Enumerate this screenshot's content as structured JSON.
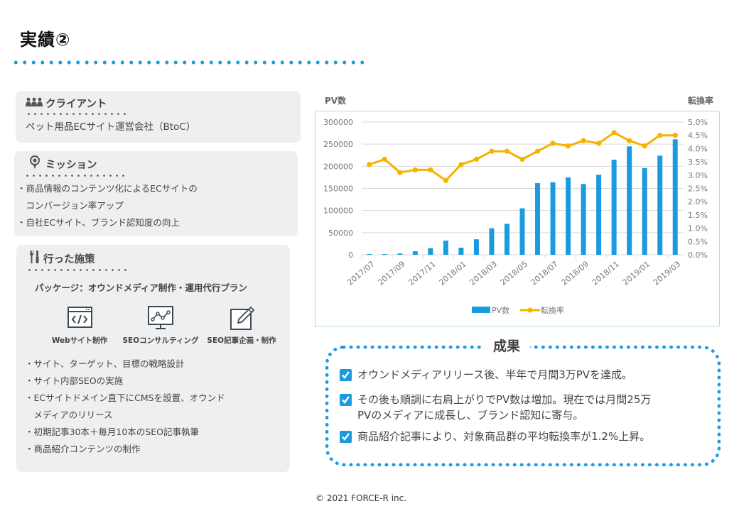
{
  "page": {
    "title": "実績②"
  },
  "client": {
    "heading": "クライアント",
    "icon": "group-icon",
    "text": "ペット用品ECサイト運営会社（BtoC）"
  },
  "mission": {
    "heading": "ミッション",
    "icon": "target-pin-icon",
    "items": [
      "・商品情報のコンテンツ化によるECサイトの",
      "　コンバージョン率アップ",
      "・自社ECサイト、ブランド認知度の向上"
    ]
  },
  "measures": {
    "heading": "行った施策",
    "icon": "tools-icon",
    "package": "パッケージ：オウンドメディア制作・運用代行プラン",
    "services": [
      {
        "label": "Webサイト制作",
        "icon": "code-window-icon"
      },
      {
        "label": "SEOコンサルティング",
        "icon": "analytics-monitor-icon"
      },
      {
        "label": "SEO記事企画・制作",
        "icon": "edit-pen-icon"
      }
    ],
    "items": [
      "・サイト、ターゲット、目標の戦略設計",
      "・サイト内部SEOの実施",
      "・ECサイトドメイン直下にCMSを設置、オウンド",
      "　メディアのリリース",
      "・初期記事30本＋毎月10本のSEO記事執筆",
      "・商品紹介コンテンツの制作"
    ]
  },
  "chart_data": {
    "type": "bar+line",
    "title": "",
    "ylabel": "PV数",
    "y2label": "転換率",
    "ylim": [
      0,
      300000
    ],
    "y2lim": [
      0,
      5.0
    ],
    "yticks": [
      "300000",
      "250000",
      "200000",
      "150000",
      "100000",
      "50000",
      "0"
    ],
    "y2ticks": [
      "5.0%",
      "4.5%",
      "4.0%",
      "3.5%",
      "3.0%",
      "2.5%",
      "2.0%",
      "1.5%",
      "1.0%",
      "0.5%",
      "0.0%"
    ],
    "xtick_labels": [
      "2017/07",
      "2017/09",
      "2017/11",
      "2018/01",
      "2018/03",
      "2018/05",
      "2018/07",
      "2018/09",
      "2018/11",
      "2019/01",
      "2019/03"
    ],
    "grid": true,
    "legend_position": "bottom",
    "categories": [
      "2017/07",
      "2017/08",
      "2017/09",
      "2017/10",
      "2017/11",
      "2017/12",
      "2018/01",
      "2018/02",
      "2018/03",
      "2018/04",
      "2018/05",
      "2018/06",
      "2018/07",
      "2018/08",
      "2018/09",
      "2018/10",
      "2018/11",
      "2018/12",
      "2019/01",
      "2019/02",
      "2019/03"
    ],
    "series": [
      {
        "name": "PV数",
        "type": "bar",
        "axis": "left",
        "color": "#1a9be0",
        "values": [
          1500,
          1500,
          3000,
          8000,
          15000,
          32000,
          16000,
          35000,
          60000,
          70000,
          105000,
          162000,
          164000,
          175000,
          160000,
          181000,
          215000,
          245000,
          196000,
          224000,
          261000
        ]
      },
      {
        "name": "転換率",
        "type": "line",
        "axis": "right",
        "color": "#f5b300",
        "unit": "%",
        "values": [
          3.4,
          3.6,
          3.1,
          3.2,
          3.2,
          2.8,
          3.4,
          3.6,
          3.9,
          3.9,
          3.6,
          3.9,
          4.2,
          4.1,
          4.3,
          4.2,
          4.6,
          4.3,
          4.1,
          4.5,
          4.5
        ]
      }
    ]
  },
  "results": {
    "title": "成果",
    "items": [
      {
        "lines": [
          "オウンドメディアリリース後、半年で月間3万PVを達成。"
        ]
      },
      {
        "lines": [
          "その後も順調に右肩上がりでPV数は増加。現在では月間25万",
          "PVのメディアに成長し、ブランド認知に寄与。"
        ]
      },
      {
        "lines": [
          "商品紹介記事により、対象商品群の平均転換率が1.2%上昇。"
        ]
      }
    ]
  },
  "footer": {
    "copyright": "© 2021  FORCE-R inc."
  },
  "colors": {
    "accent": "#1a9be0",
    "line": "#f5b300",
    "card_bg": "#efefef"
  }
}
